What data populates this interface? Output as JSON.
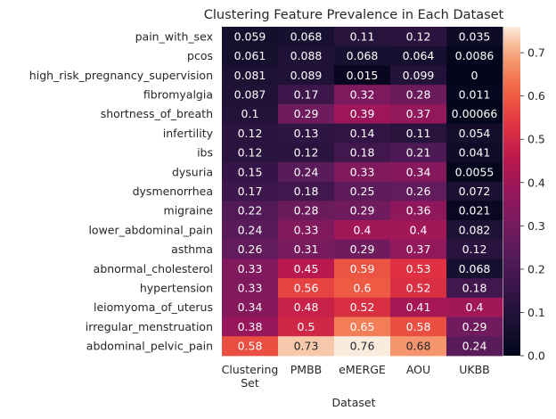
{
  "chart_data": {
    "type": "heatmap",
    "title": "Clustering Feature Prevalence in Each Dataset",
    "xlabel": "Dataset",
    "ylabel": "",
    "columns": [
      [
        "Clustering",
        "Set"
      ],
      [
        "PMBB"
      ],
      [
        "eMERGE"
      ],
      [
        "AOU"
      ],
      [
        "UKBB"
      ]
    ],
    "rows": [
      "pain_with_sex",
      "pcos",
      "high_risk_pregnancy_supervision",
      "fibromyalgia",
      "shortness_of_breath",
      "infertility",
      "ibs",
      "dysuria",
      "dysmenorrhea",
      "migraine",
      "lower_abdominal_pain",
      "asthma",
      "abnormal_cholesterol",
      "hypertension",
      "leiomyoma_of_uterus",
      "irregular_menstruation",
      "abdominal_pelvic_pain"
    ],
    "values": [
      [
        0.059,
        0.068,
        0.11,
        0.12,
        0.035
      ],
      [
        0.061,
        0.088,
        0.068,
        0.064,
        0.0086
      ],
      [
        0.081,
        0.089,
        0.015,
        0.099,
        0
      ],
      [
        0.087,
        0.17,
        0.32,
        0.28,
        0.011
      ],
      [
        0.1,
        0.29,
        0.39,
        0.37,
        0.00066
      ],
      [
        0.12,
        0.13,
        0.14,
        0.11,
        0.054
      ],
      [
        0.12,
        0.12,
        0.18,
        0.21,
        0.041
      ],
      [
        0.15,
        0.24,
        0.33,
        0.34,
        0.0055
      ],
      [
        0.17,
        0.18,
        0.25,
        0.26,
        0.072
      ],
      [
        0.22,
        0.28,
        0.29,
        0.36,
        0.021
      ],
      [
        0.24,
        0.33,
        0.4,
        0.4,
        0.082
      ],
      [
        0.26,
        0.31,
        0.29,
        0.37,
        0.12
      ],
      [
        0.33,
        0.45,
        0.59,
        0.53,
        0.068
      ],
      [
        0.33,
        0.56,
        0.6,
        0.52,
        0.18
      ],
      [
        0.34,
        0.48,
        0.52,
        0.41,
        0.4
      ],
      [
        0.38,
        0.5,
        0.65,
        0.58,
        0.29
      ],
      [
        0.58,
        0.73,
        0.76,
        0.68,
        0.24
      ]
    ],
    "labels": [
      [
        "0.059",
        "0.068",
        "0.11",
        "0.12",
        "0.035"
      ],
      [
        "0.061",
        "0.088",
        "0.068",
        "0.064",
        "0.0086"
      ],
      [
        "0.081",
        "0.089",
        "0.015",
        "0.099",
        "0"
      ],
      [
        "0.087",
        "0.17",
        "0.32",
        "0.28",
        "0.011"
      ],
      [
        "0.1",
        "0.29",
        "0.39",
        "0.37",
        "0.00066"
      ],
      [
        "0.12",
        "0.13",
        "0.14",
        "0.11",
        "0.054"
      ],
      [
        "0.12",
        "0.12",
        "0.18",
        "0.21",
        "0.041"
      ],
      [
        "0.15",
        "0.24",
        "0.33",
        "0.34",
        "0.0055"
      ],
      [
        "0.17",
        "0.18",
        "0.25",
        "0.26",
        "0.072"
      ],
      [
        "0.22",
        "0.28",
        "0.29",
        "0.36",
        "0.021"
      ],
      [
        "0.24",
        "0.33",
        "0.4",
        "0.4",
        "0.082"
      ],
      [
        "0.26",
        "0.31",
        "0.29",
        "0.37",
        "0.12"
      ],
      [
        "0.33",
        "0.45",
        "0.59",
        "0.53",
        "0.068"
      ],
      [
        "0.33",
        "0.56",
        "0.6",
        "0.52",
        "0.18"
      ],
      [
        "0.34",
        "0.48",
        "0.52",
        "0.41",
        "0.4"
      ],
      [
        "0.38",
        "0.5",
        "0.65",
        "0.58",
        "0.29"
      ],
      [
        "0.58",
        "0.73",
        "0.76",
        "0.68",
        "0.24"
      ]
    ],
    "colorbar": {
      "range": [
        0,
        0.76
      ],
      "ticks": [
        "0.0",
        "0.1",
        "0.2",
        "0.3",
        "0.4",
        "0.5",
        "0.6",
        "0.7"
      ],
      "colormap": "rocket"
    },
    "grid": false
  }
}
